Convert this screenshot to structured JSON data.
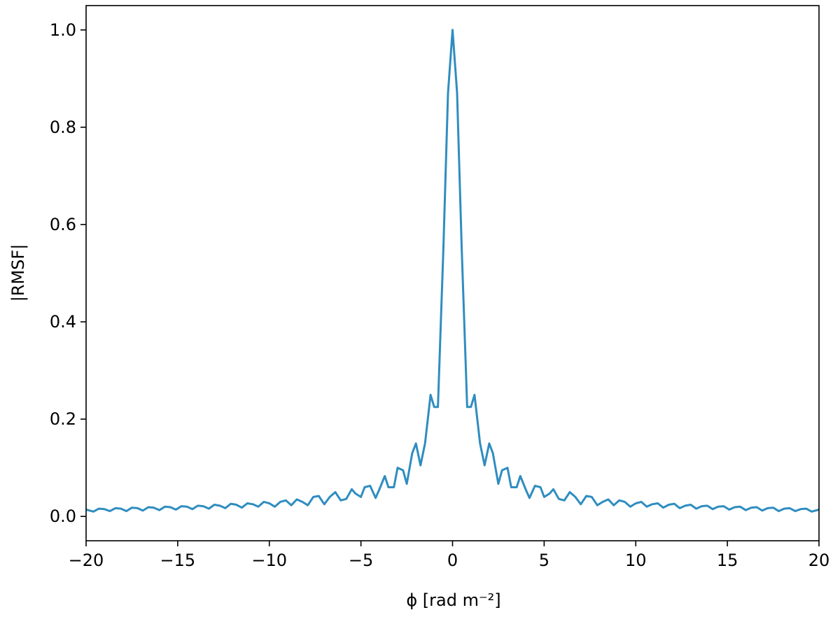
{
  "chart_data": {
    "type": "line",
    "title": "",
    "xlabel": "ϕ [rad m⁻²]",
    "ylabel": "|RMSF|",
    "xlim": [
      -20,
      20
    ],
    "ylim": [
      -0.05,
      1.05
    ],
    "grid": false,
    "x_ticks": [
      "−20",
      "−15",
      "−10",
      "−5",
      "0",
      "5",
      "10",
      "15",
      "20"
    ],
    "x_tick_values": [
      -20,
      -15,
      -10,
      -5,
      0,
      5,
      10,
      15,
      20
    ],
    "y_ticks": [
      "0.0",
      "0.2",
      "0.4",
      "0.6",
      "0.8",
      "1.0"
    ],
    "y_tick_values": [
      0,
      0.2,
      0.4,
      0.6,
      0.8,
      1.0
    ],
    "line_color": "#2f8dc0",
    "series": [
      {
        "x": [
          -20.0,
          -19.6,
          -19.3,
          -19.0,
          -18.7,
          -18.4,
          -18.1,
          -17.8,
          -17.5,
          -17.2,
          -16.9,
          -16.6,
          -16.3,
          -16.0,
          -15.7,
          -15.4,
          -15.1,
          -14.8,
          -14.5,
          -14.2,
          -13.9,
          -13.6,
          -13.3,
          -13.0,
          -12.7,
          -12.4,
          -12.1,
          -11.8,
          -11.5,
          -11.2,
          -10.9,
          -10.6,
          -10.3,
          -10.0,
          -9.7,
          -9.4,
          -9.1,
          -8.8,
          -8.5,
          -8.2,
          -7.9,
          -7.6,
          -7.3,
          -7.0,
          -6.7,
          -6.4,
          -6.1,
          -5.8,
          -5.5,
          -5.3,
          -5.0,
          -4.8,
          -4.5,
          -4.2,
          -4.0,
          -3.7,
          -3.5,
          -3.2,
          -3.0,
          -2.7,
          -2.5,
          -2.2,
          -2.0,
          -1.75,
          -1.5,
          -1.2,
          -1.0,
          -0.8,
          -0.5,
          -0.25,
          0,
          0.25,
          0.5,
          0.8,
          1.0,
          1.2,
          1.5,
          1.75,
          2.0,
          2.2,
          2.5,
          2.7,
          3.0,
          3.2,
          3.5,
          3.7,
          4.0,
          4.2,
          4.5,
          4.8,
          5.0,
          5.3,
          5.5,
          5.8,
          6.1,
          6.4,
          6.7,
          7.0,
          7.3,
          7.6,
          7.9,
          8.2,
          8.5,
          8.8,
          9.1,
          9.4,
          9.7,
          10.0,
          10.3,
          10.6,
          10.9,
          11.2,
          11.5,
          11.8,
          12.1,
          12.4,
          12.7,
          13.0,
          13.3,
          13.6,
          13.9,
          14.2,
          14.5,
          14.8,
          15.1,
          15.4,
          15.7,
          16.0,
          16.3,
          16.6,
          16.9,
          17.2,
          17.5,
          17.8,
          18.1,
          18.4,
          18.7,
          19.0,
          19.3,
          19.6,
          20.0
        ],
        "y": [
          0.014,
          0.01,
          0.016,
          0.015,
          0.011,
          0.017,
          0.016,
          0.011,
          0.018,
          0.017,
          0.012,
          0.019,
          0.018,
          0.013,
          0.02,
          0.019,
          0.014,
          0.021,
          0.02,
          0.015,
          0.022,
          0.021,
          0.016,
          0.024,
          0.022,
          0.017,
          0.026,
          0.024,
          0.018,
          0.027,
          0.025,
          0.02,
          0.03,
          0.027,
          0.02,
          0.03,
          0.033,
          0.023,
          0.035,
          0.03,
          0.023,
          0.04,
          0.042,
          0.025,
          0.04,
          0.05,
          0.033,
          0.036,
          0.056,
          0.047,
          0.04,
          0.06,
          0.063,
          0.038,
          0.055,
          0.083,
          0.06,
          0.06,
          0.1,
          0.095,
          0.067,
          0.13,
          0.15,
          0.105,
          0.15,
          0.25,
          0.225,
          0.225,
          0.55,
          0.87,
          1.0,
          0.87,
          0.55,
          0.225,
          0.225,
          0.25,
          0.15,
          0.105,
          0.15,
          0.13,
          0.067,
          0.095,
          0.1,
          0.06,
          0.06,
          0.083,
          0.055,
          0.038,
          0.063,
          0.06,
          0.04,
          0.047,
          0.056,
          0.036,
          0.033,
          0.05,
          0.04,
          0.025,
          0.042,
          0.04,
          0.023,
          0.03,
          0.035,
          0.023,
          0.033,
          0.03,
          0.02,
          0.027,
          0.03,
          0.02,
          0.025,
          0.027,
          0.018,
          0.024,
          0.026,
          0.017,
          0.022,
          0.024,
          0.016,
          0.021,
          0.022,
          0.015,
          0.02,
          0.021,
          0.014,
          0.019,
          0.02,
          0.013,
          0.018,
          0.019,
          0.012,
          0.017,
          0.018,
          0.011,
          0.016,
          0.017,
          0.011,
          0.015,
          0.016,
          0.01,
          0.014
        ]
      }
    ]
  }
}
